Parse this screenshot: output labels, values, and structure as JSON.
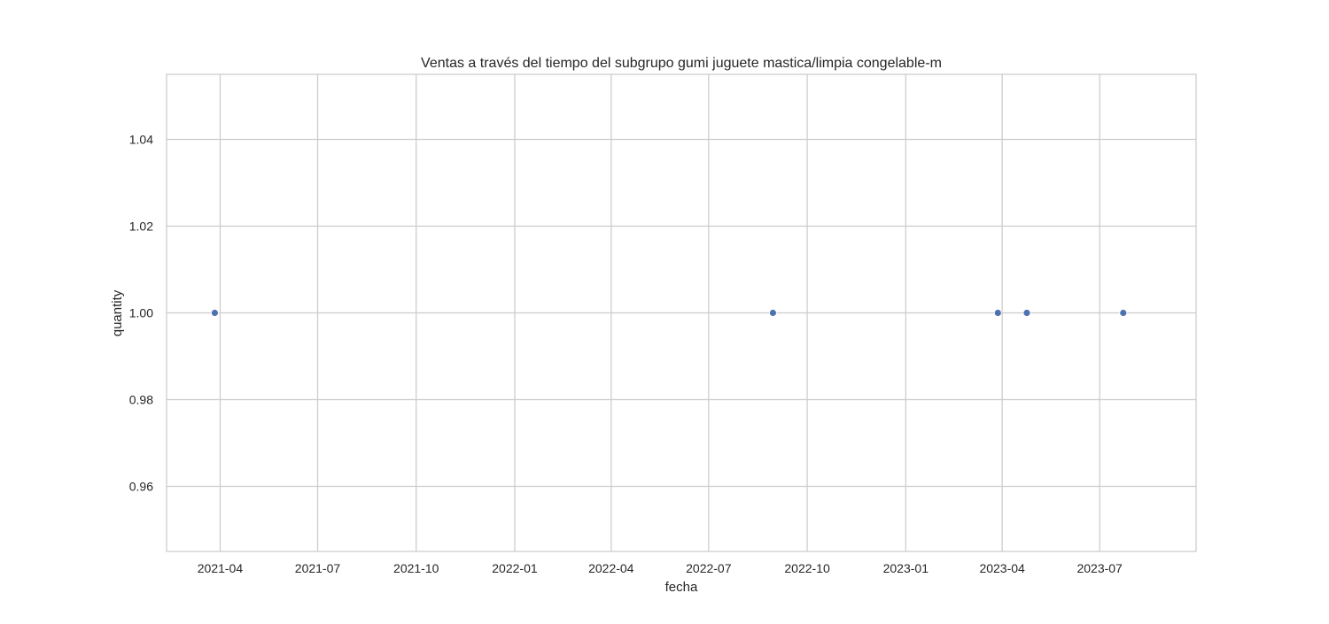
{
  "chart_data": {
    "type": "scatter",
    "title": "Ventas a través del tiempo del subgrupo gumi juguete mastica/limpia congelable-m",
    "xlabel": "fecha",
    "ylabel": "quantity",
    "x_type": "date",
    "xlim": [
      "2021-02-10",
      "2023-09-29"
    ],
    "ylim": [
      0.945,
      1.055
    ],
    "x_ticks": [
      "2021-04",
      "2021-07",
      "2021-10",
      "2022-01",
      "2022-04",
      "2022-07",
      "2022-10",
      "2023-01",
      "2023-04",
      "2023-07"
    ],
    "y_ticks": [
      "0.96",
      "0.98",
      "1.00",
      "1.02",
      "1.04"
    ],
    "grid": true,
    "series": [
      {
        "color": "#4c72b0",
        "points": [
          {
            "x": "2021-03-27",
            "y": 1.0
          },
          {
            "x": "2022-08-30",
            "y": 1.0
          },
          {
            "x": "2023-03-28",
            "y": 1.0
          },
          {
            "x": "2023-04-24",
            "y": 1.0
          },
          {
            "x": "2023-07-23",
            "y": 1.0
          }
        ]
      }
    ]
  }
}
